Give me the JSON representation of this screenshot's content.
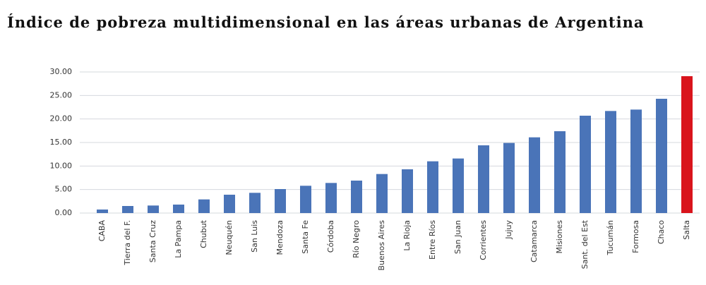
{
  "chart_data": {
    "type": "bar",
    "title": "Índice de pobreza multidimensional en las áreas urbanas de Argentina",
    "categories": [
      "CABA",
      "Tierra del F.",
      "Santa Cruz",
      "La Pampa",
      "Chubut",
      "Neuquén",
      "San Luis",
      "Mendoza",
      "Santa Fe",
      "Córdoba",
      "Río Negro",
      "Buenos Aires",
      "La Rioja",
      "Entre Ríos",
      "San Juan",
      "Corrientes",
      "Jujuy",
      "Catamarca",
      "Misiones",
      "Sant. del Est",
      "Tucumán",
      "Formosa",
      "Chaco",
      "Salta"
    ],
    "values": [
      0.75,
      1.5,
      1.6,
      1.8,
      2.9,
      3.9,
      4.3,
      5.1,
      5.8,
      6.4,
      6.9,
      8.3,
      9.3,
      11.0,
      11.6,
      14.4,
      14.9,
      16.1,
      17.4,
      20.7,
      21.7,
      22.0,
      24.3,
      29.1
    ],
    "colors": [
      "#4a74b8",
      "#4a74b8",
      "#4a74b8",
      "#4a74b8",
      "#4a74b8",
      "#4a74b8",
      "#4a74b8",
      "#4a74b8",
      "#4a74b8",
      "#4a74b8",
      "#4a74b8",
      "#4a74b8",
      "#4a74b8",
      "#4a74b8",
      "#4a74b8",
      "#4a74b8",
      "#4a74b8",
      "#4a74b8",
      "#4a74b8",
      "#4a74b8",
      "#4a74b8",
      "#4a74b8",
      "#4a74b8",
      "#d9141c"
    ],
    "ylim": [
      0,
      30
    ],
    "yticks": [
      {
        "value": 0,
        "label": "0.00"
      },
      {
        "value": 5,
        "label": "5.00"
      },
      {
        "value": 10,
        "label": "10.00"
      },
      {
        "value": 15,
        "label": "15.00"
      },
      {
        "value": 20,
        "label": "20.00"
      },
      {
        "value": 25,
        "label": "25.00"
      },
      {
        "value": 30,
        "label": "30.00"
      }
    ],
    "grid": true
  }
}
